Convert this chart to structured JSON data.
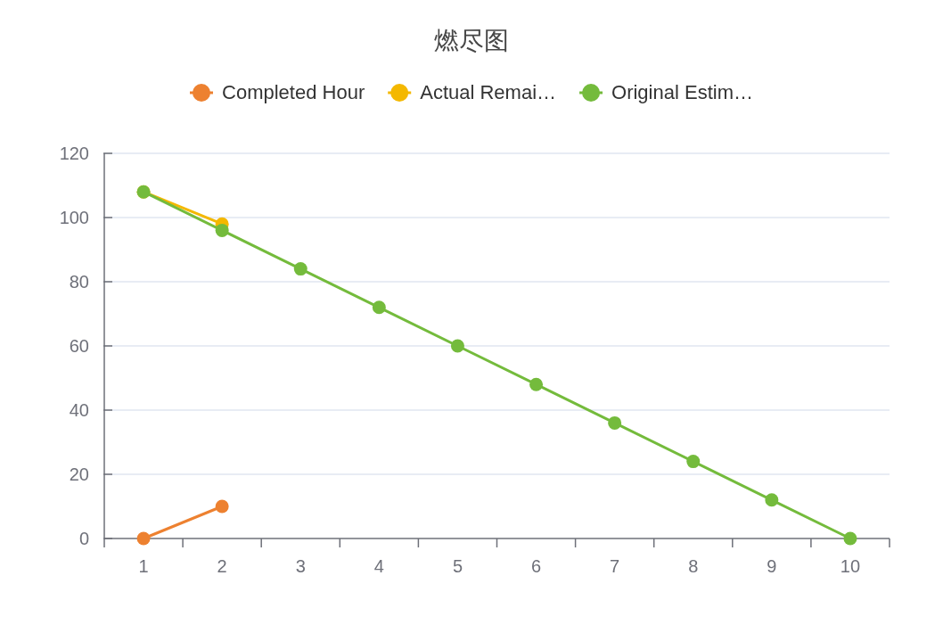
{
  "chart_data": {
    "type": "line",
    "title": "燃尽图",
    "categories": [
      "1",
      "2",
      "3",
      "4",
      "5",
      "6",
      "7",
      "8",
      "9",
      "10"
    ],
    "series": [
      {
        "name": "Completed Hour",
        "color": "#ed8130",
        "values": [
          0,
          10,
          null,
          null,
          null,
          null,
          null,
          null,
          null,
          null
        ]
      },
      {
        "name": "Actual Remai…",
        "color": "#f4b800",
        "values": [
          108,
          98,
          null,
          null,
          null,
          null,
          null,
          null,
          null,
          null
        ]
      },
      {
        "name": "Original Estim…",
        "color": "#74bb3c",
        "values": [
          108,
          96,
          84,
          72,
          60,
          48,
          36,
          24,
          12,
          0
        ]
      }
    ],
    "ylim": [
      0,
      120
    ],
    "yticks": [
      0,
      20,
      40,
      60,
      80,
      100,
      120
    ],
    "grid": "y",
    "legend": "top",
    "marker": "circle",
    "line_style": "solid"
  }
}
